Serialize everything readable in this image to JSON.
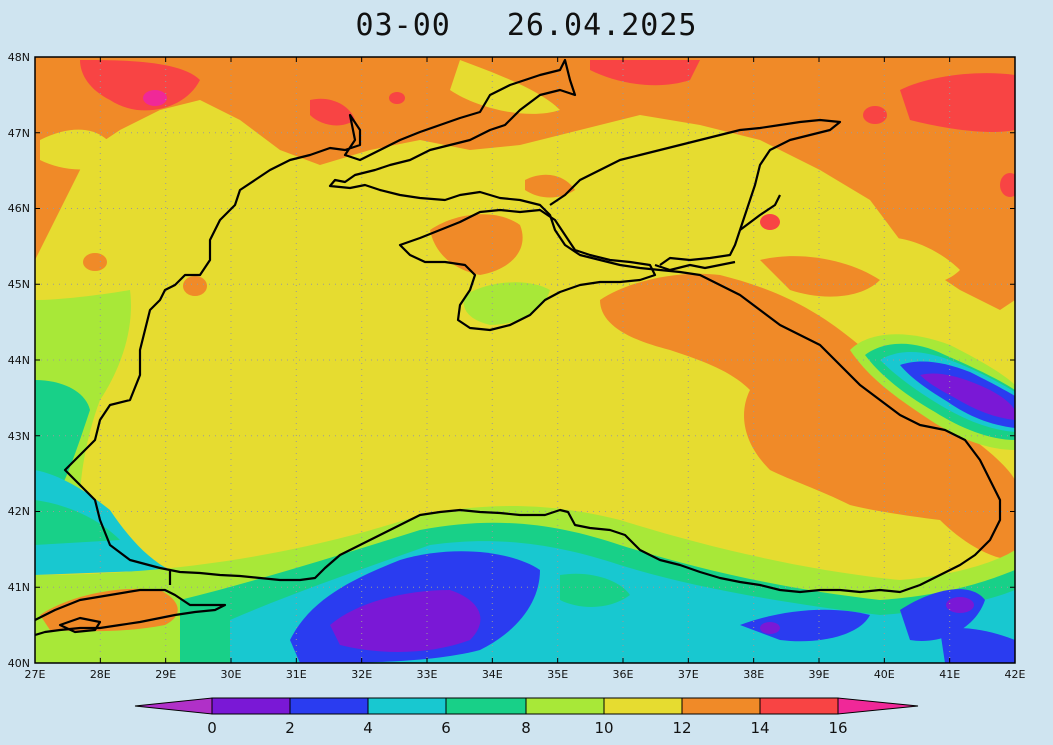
{
  "title": {
    "time": "03-00",
    "date": "26.04.2025"
  },
  "map": {
    "lat_labels": [
      "48N",
      "47N",
      "46N",
      "45N",
      "44N",
      "43N",
      "42N",
      "41N",
      "40N"
    ],
    "lon_labels": [
      "27E",
      "28E",
      "29E",
      "30E",
      "31E",
      "32E",
      "33E",
      "34E",
      "35E",
      "36E",
      "37E",
      "38E",
      "39E",
      "40E",
      "41E",
      "42E"
    ],
    "lon_range": [
      27,
      42
    ],
    "lat_range": [
      40,
      48
    ]
  },
  "colorbar": {
    "labels": [
      "0",
      "2",
      "4",
      "6",
      "8",
      "10",
      "12",
      "14",
      "16"
    ],
    "colors": [
      "#b030c8",
      "#7a18d6",
      "#2a3cf0",
      "#18c8d0",
      "#18d088",
      "#a8e838",
      "#e6dc30",
      "#f08a28",
      "#f84444",
      "#f02898"
    ]
  },
  "palette": {
    "violet": "#7a18d6",
    "blue": "#2a3cf0",
    "cyan": "#18c8d0",
    "green": "#18d088",
    "lime": "#a8e838",
    "yellow": "#e6dc30",
    "orange": "#f08a28",
    "red": "#f84444",
    "magenta": "#f02898"
  }
}
